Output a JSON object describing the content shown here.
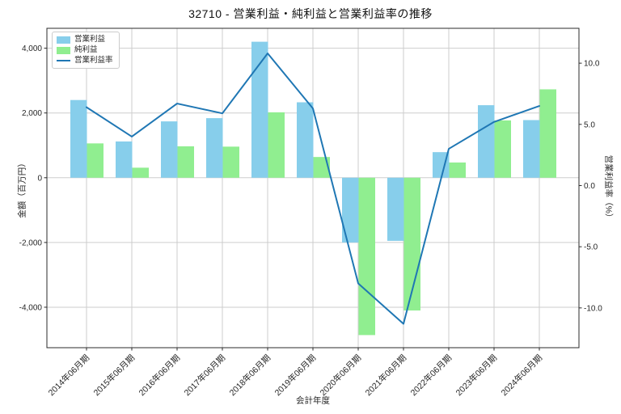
{
  "title": "32710 - 営業利益・純利益と営業利益率の推移",
  "colors": {
    "bar_blue": "#87CEEB",
    "bar_green": "#90EE90",
    "line_blue": "#1f77b4",
    "grid": "#cdcdcd",
    "spine": "#2b2b2b",
    "text": "#262626"
  },
  "chart_data": {
    "type": "bar",
    "title": "32710 - 営業利益・純利益と営業利益率の推移",
    "xlabel": "会計年度",
    "ylabel_left": "金額（百万円）",
    "ylabel_right": "営業利益率（%）",
    "grid": true,
    "legend_position": "upper left",
    "categories": [
      "2014年06月期",
      "2015年06月期",
      "2016年06月期",
      "2017年06月期",
      "2018年06月期",
      "2019年06月期",
      "2020年06月期",
      "2021年06月期",
      "2022年06月期",
      "2023年06月期",
      "2024年06月期"
    ],
    "series": [
      {
        "name": "営業利益",
        "type": "bar",
        "axis": "left",
        "color_key": "bar_blue",
        "values": [
          2400,
          1120,
          1740,
          1840,
          4200,
          2330,
          -2000,
          -1950,
          790,
          2240,
          1780
        ]
      },
      {
        "name": "純利益",
        "type": "bar",
        "axis": "left",
        "color_key": "bar_green",
        "values": [
          1060,
          310,
          970,
          960,
          2020,
          640,
          -4860,
          -4100,
          470,
          1770,
          2730
        ]
      },
      {
        "name": "営業利益率",
        "type": "line",
        "axis": "right",
        "color_key": "line_blue",
        "values": [
          6.4,
          4.0,
          6.7,
          5.9,
          10.8,
          6.3,
          -8.0,
          -11.3,
          3.0,
          5.2,
          6.5
        ]
      }
    ],
    "left_axis": {
      "ticks": [
        -4000,
        -2000,
        0,
        2000,
        4000
      ],
      "lim": [
        -5250,
        4615
      ]
    },
    "right_axis": {
      "ticks": [
        -10.0,
        -5.0,
        0.0,
        5.0,
        10.0
      ],
      "lim": [
        -13.25,
        12.85
      ]
    }
  }
}
